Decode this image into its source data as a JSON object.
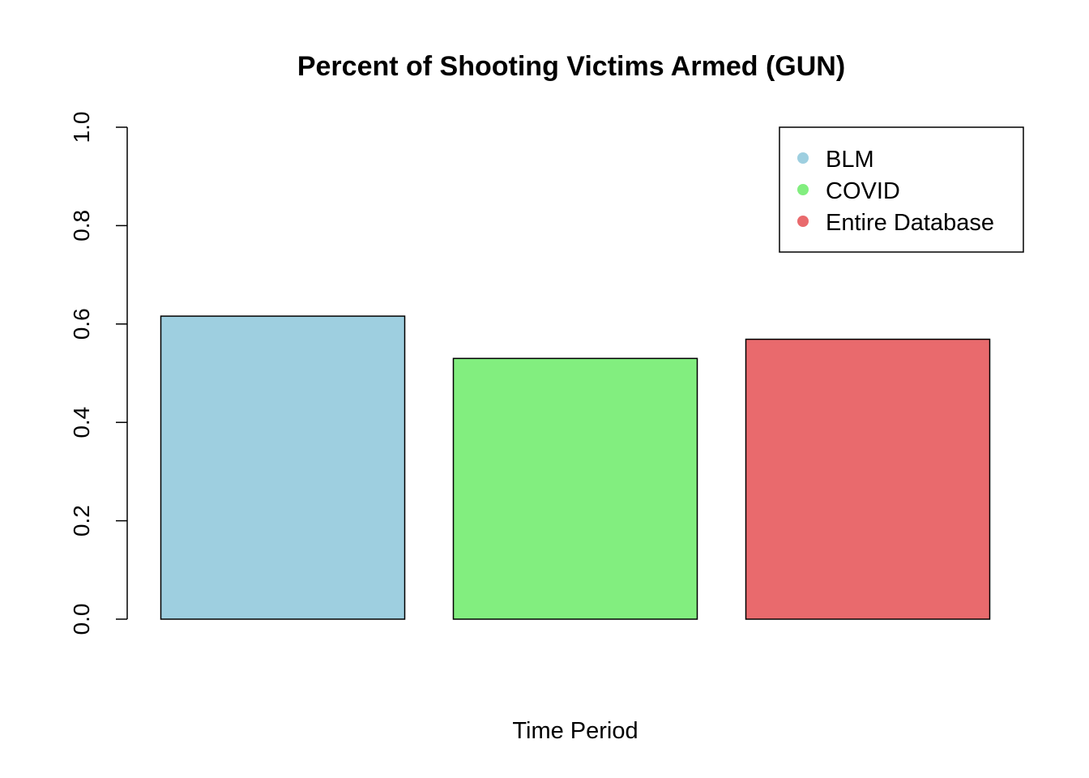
{
  "chart_data": {
    "type": "bar",
    "title": "Percent of Shooting Victims Armed (GUN)",
    "xlabel": "Time Period",
    "ylabel": "",
    "ylim": [
      0,
      1
    ],
    "yticks": [
      "0.0",
      "0.2",
      "0.4",
      "0.6",
      "0.8",
      "1.0"
    ],
    "categories": [
      "BLM",
      "COVID",
      "Entire Database"
    ],
    "values": [
      0.616,
      0.53,
      0.569
    ],
    "colors": [
      "#9ecfe0",
      "#82ee7f",
      "#e96a6d"
    ],
    "legend": {
      "position": "top-right",
      "entries": [
        "BLM",
        "COVID",
        "Entire Database"
      ]
    },
    "grid": false
  }
}
